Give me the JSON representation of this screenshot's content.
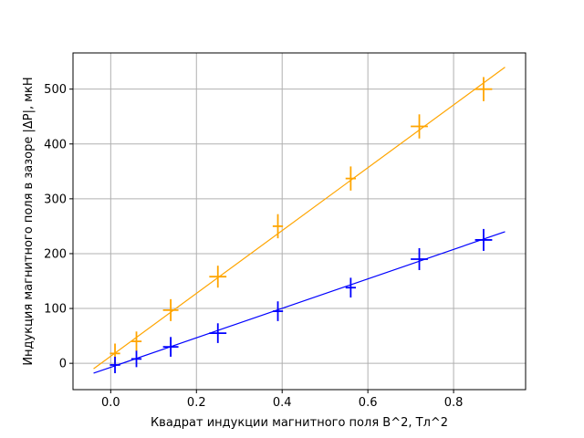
{
  "chart_data": {
    "type": "scatter",
    "xlabel": "Квадрат индукции магнитного поля B^2, Тл^2",
    "ylabel": "Индукция магнитного поля в зазоре |ΔP|, мкН",
    "xlim": [
      -0.088,
      0.968
    ],
    "ylim": [
      -48,
      566
    ],
    "xticks": [
      0.0,
      0.2,
      0.4,
      0.6,
      0.8
    ],
    "xtick_labels": [
      "0.0",
      "0.2",
      "0.4",
      "0.6",
      "0.8"
    ],
    "yticks": [
      0,
      100,
      200,
      300,
      400,
      500
    ],
    "ytick_labels": [
      "0",
      "100",
      "200",
      "300",
      "400",
      "500"
    ],
    "grid": true,
    "series": [
      {
        "color": "#ffa500",
        "points": [
          {
            "x": 0.01,
            "y": 18,
            "xerr": 0.012,
            "yerr": 18
          },
          {
            "x": 0.06,
            "y": 40,
            "xerr": 0.012,
            "yerr": 18
          },
          {
            "x": 0.14,
            "y": 97,
            "xerr": 0.018,
            "yerr": 20
          },
          {
            "x": 0.25,
            "y": 158,
            "xerr": 0.02,
            "yerr": 20
          },
          {
            "x": 0.39,
            "y": 250,
            "xerr": 0.012,
            "yerr": 22
          },
          {
            "x": 0.56,
            "y": 337,
            "xerr": 0.012,
            "yerr": 22
          },
          {
            "x": 0.72,
            "y": 432,
            "xerr": 0.02,
            "yerr": 22
          },
          {
            "x": 0.87,
            "y": 500,
            "xerr": 0.02,
            "yerr": 22
          }
        ],
        "fit": {
          "x": [
            -0.04,
            0.92
          ],
          "y": [
            -10,
            540
          ]
        }
      },
      {
        "color": "#0000ff",
        "points": [
          {
            "x": 0.01,
            "y": -3,
            "xerr": 0.012,
            "yerr": 15
          },
          {
            "x": 0.06,
            "y": 8,
            "xerr": 0.012,
            "yerr": 15
          },
          {
            "x": 0.14,
            "y": 30,
            "xerr": 0.018,
            "yerr": 18
          },
          {
            "x": 0.25,
            "y": 55,
            "xerr": 0.02,
            "yerr": 18
          },
          {
            "x": 0.39,
            "y": 95,
            "xerr": 0.012,
            "yerr": 18
          },
          {
            "x": 0.56,
            "y": 138,
            "xerr": 0.012,
            "yerr": 18
          },
          {
            "x": 0.72,
            "y": 190,
            "xerr": 0.02,
            "yerr": 20
          },
          {
            "x": 0.87,
            "y": 225,
            "xerr": 0.02,
            "yerr": 20
          }
        ],
        "fit": {
          "x": [
            -0.04,
            0.92
          ],
          "y": [
            -18,
            240
          ]
        }
      }
    ]
  }
}
